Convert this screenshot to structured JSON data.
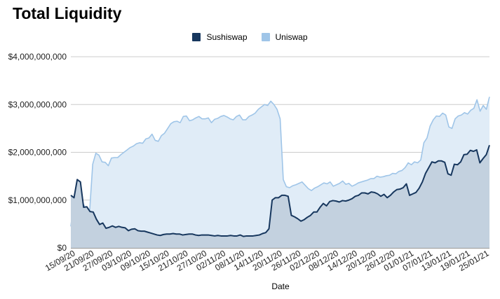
{
  "chart_data": {
    "type": "area",
    "title": "Total Liquidity",
    "xlabel": "Date",
    "ylabel": "",
    "ylim": [
      0,
      4000000000
    ],
    "yticks": [
      0,
      1000000000,
      2000000000,
      3000000000,
      4000000000
    ],
    "ytick_labels": [
      "$0",
      "$1,000,000,000",
      "$2,000,000,000",
      "$3,000,000,000",
      "$4,000,000,000"
    ],
    "xtick_labels": [
      "15/09/20",
      "21/09/20",
      "27/09/20",
      "03/10/20",
      "09/10/20",
      "15/10/20",
      "21/10/20",
      "27/10/20",
      "02/11/20",
      "08/11/20",
      "14/11/20",
      "20/11/20",
      "26/11/20",
      "02/12/20",
      "08/12/20",
      "14/12/20",
      "20/12/20",
      "26/12/20",
      "01/01/21",
      "07/01/21",
      "13/01/21",
      "19/01/21",
      "25/01/21"
    ],
    "grid": true,
    "legend_position": "top",
    "series": [
      {
        "name": "Sushiswap",
        "color": "#17375e",
        "fill": "#c3d1df",
        "values": [
          1100000000,
          1050000000,
          1430000000,
          1380000000,
          850000000,
          860000000,
          760000000,
          750000000,
          600000000,
          490000000,
          520000000,
          410000000,
          430000000,
          460000000,
          430000000,
          450000000,
          430000000,
          420000000,
          360000000,
          390000000,
          400000000,
          360000000,
          350000000,
          350000000,
          330000000,
          310000000,
          290000000,
          270000000,
          260000000,
          280000000,
          290000000,
          290000000,
          300000000,
          290000000,
          290000000,
          270000000,
          280000000,
          290000000,
          290000000,
          270000000,
          260000000,
          270000000,
          270000000,
          270000000,
          260000000,
          250000000,
          260000000,
          250000000,
          250000000,
          250000000,
          260000000,
          250000000,
          250000000,
          270000000,
          240000000,
          250000000,
          250000000,
          250000000,
          260000000,
          270000000,
          300000000,
          320000000,
          400000000,
          1000000000,
          1050000000,
          1050000000,
          1100000000,
          1100000000,
          1080000000,
          680000000,
          650000000,
          610000000,
          560000000,
          590000000,
          640000000,
          680000000,
          750000000,
          750000000,
          850000000,
          930000000,
          880000000,
          970000000,
          990000000,
          980000000,
          960000000,
          990000000,
          980000000,
          1000000000,
          1030000000,
          1080000000,
          1100000000,
          1150000000,
          1150000000,
          1130000000,
          1170000000,
          1160000000,
          1130000000,
          1080000000,
          1120000000,
          1050000000,
          1100000000,
          1170000000,
          1220000000,
          1230000000,
          1260000000,
          1340000000,
          1100000000,
          1130000000,
          1160000000,
          1250000000,
          1380000000,
          1560000000,
          1680000000,
          1800000000,
          1780000000,
          1820000000,
          1820000000,
          1790000000,
          1550000000,
          1520000000,
          1750000000,
          1740000000,
          1800000000,
          1950000000,
          1960000000,
          2040000000,
          2020000000,
          2050000000,
          1780000000,
          1870000000,
          1950000000,
          2150000000
        ]
      },
      {
        "name": "Uniswap",
        "color": "#9fc5e8",
        "fill": "#e0ecf7",
        "values": [
          450000000,
          1000000000,
          620000000,
          560000000,
          920000000,
          800000000,
          750000000,
          1750000000,
          1980000000,
          1940000000,
          1800000000,
          1790000000,
          1720000000,
          1880000000,
          1890000000,
          1890000000,
          1950000000,
          2000000000,
          2050000000,
          2100000000,
          2130000000,
          2180000000,
          2200000000,
          2190000000,
          2280000000,
          2300000000,
          2380000000,
          2250000000,
          2230000000,
          2350000000,
          2400000000,
          2500000000,
          2600000000,
          2640000000,
          2650000000,
          2620000000,
          2750000000,
          2760000000,
          2660000000,
          2680000000,
          2720000000,
          2750000000,
          2700000000,
          2700000000,
          2720000000,
          2620000000,
          2690000000,
          2710000000,
          2750000000,
          2770000000,
          2740000000,
          2700000000,
          2680000000,
          2750000000,
          2780000000,
          2680000000,
          2680000000,
          2750000000,
          2780000000,
          2820000000,
          2900000000,
          2950000000,
          3000000000,
          2980000000,
          3070000000,
          3000000000,
          2900000000,
          2700000000,
          1430000000,
          1280000000,
          1260000000,
          1300000000,
          1320000000,
          1350000000,
          1380000000,
          1310000000,
          1240000000,
          1200000000,
          1250000000,
          1280000000,
          1320000000,
          1360000000,
          1340000000,
          1380000000,
          1290000000,
          1320000000,
          1350000000,
          1400000000,
          1330000000,
          1350000000,
          1290000000,
          1320000000,
          1360000000,
          1380000000,
          1400000000,
          1420000000,
          1450000000,
          1450000000,
          1500000000,
          1480000000,
          1490000000,
          1510000000,
          1520000000,
          1560000000,
          1550000000,
          1600000000,
          1620000000,
          1680000000,
          1780000000,
          1740000000,
          1800000000,
          1780000000,
          1840000000,
          2200000000,
          2300000000,
          2550000000,
          2680000000,
          2760000000,
          2750000000,
          2820000000,
          2780000000,
          2530000000,
          2500000000,
          2700000000,
          2760000000,
          2780000000,
          2830000000,
          2800000000,
          2880000000,
          2920000000,
          3100000000,
          2860000000,
          2980000000,
          2900000000,
          3160000000
        ]
      }
    ]
  }
}
